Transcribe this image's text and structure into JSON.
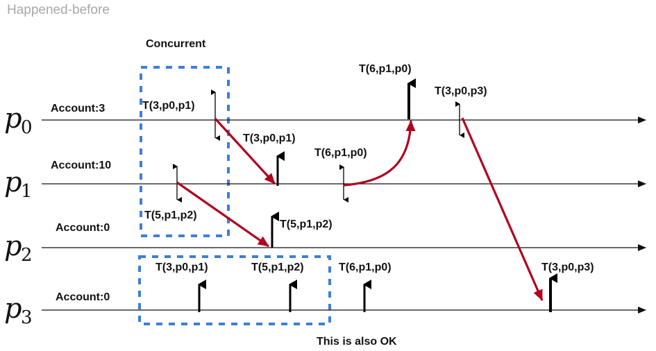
{
  "title": "Happened-before",
  "captions": {
    "concurrent": "Concurrent",
    "also_ok": "This is also OK"
  },
  "processes": [
    {
      "id": "p0",
      "letter": "p",
      "index": "0",
      "account": "Account:3"
    },
    {
      "id": "p1",
      "letter": "p",
      "index": "1",
      "account": "Account:10"
    },
    {
      "id": "p2",
      "letter": "p",
      "index": "2",
      "account": "Account:0"
    },
    {
      "id": "p3",
      "letter": "p",
      "index": "3",
      "account": "Account:0"
    }
  ],
  "event_labels": {
    "p0_send_t3p0p1": "T(3,p0,p1)",
    "p1_recv_t3p0p1": "T(3,p0,p1)",
    "p1_send_t6p1p0": "T(6,p1,p0)",
    "p0_recv_t6p1p0": "T(6,p1,p0)",
    "p0_send_t3p0p3": "T(3,p0,p3)",
    "p1_send_t5p1p2": "T(5,p1,p2)",
    "p2_recv_t5p1p2": "T(5,p1,p2)",
    "p3_recv_t3p0p1": "T(3,p0,p1)",
    "p3_recv_t5p1p2": "T(5,p1,p2)",
    "p3_recv_t6p1p0": "T(6,p1,p0)",
    "p3_recv_t3p0p3": "T(3,p0,p3)"
  },
  "colors": {
    "timeline": "#111111",
    "message": "#b0001e",
    "concurrent_box": "#3d7fd6",
    "title": "#a8a8a8"
  }
}
